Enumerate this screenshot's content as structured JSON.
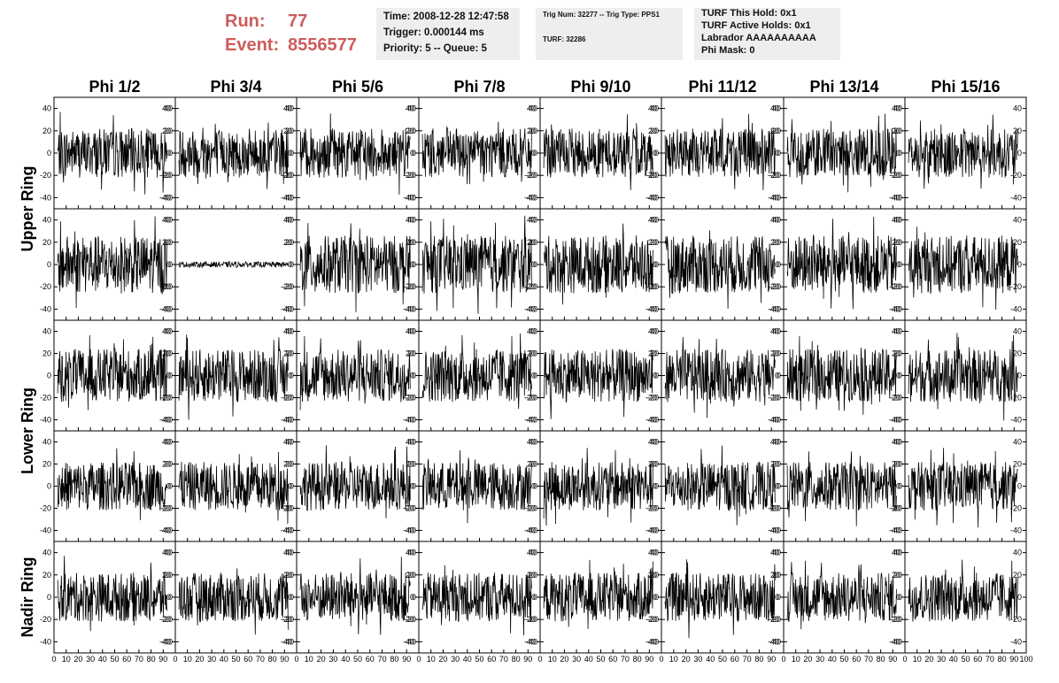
{
  "header": {
    "run_label": "Run:",
    "run_value": "77",
    "event_label": "Event:",
    "event_value": "8556577",
    "time": "Time: 2008-12-28 12:47:58",
    "trigger": "Trigger: 0.000144 ms",
    "priority": "Priority: 5 -- Queue: 5",
    "trig_info": "Trig Num: 32277 -- Trig Type: PPS1",
    "turf": "TURF: 32286",
    "turf_this_hold": "TURF This Hold: 0x1",
    "turf_active_holds": "TURF Active Holds: 0x1",
    "labrador": "Labrador AAAAAAAAAA",
    "phi_mask": "Phi Mask: 0"
  },
  "chart_data": {
    "type": "line",
    "columns": [
      "Phi 1/2",
      "Phi 3/4",
      "Phi 5/6",
      "Phi 7/8",
      "Phi 9/10",
      "Phi 11/12",
      "Phi 13/14",
      "Phi 15/16"
    ],
    "ring_labels": [
      {
        "label": "Upper Ring"
      },
      {
        "label": "Lower Ring"
      },
      {
        "label": "Nadir Ring"
      }
    ],
    "xlim": [
      0,
      100
    ],
    "ylim": [
      -50,
      50
    ],
    "ytick_labels": [
      "40",
      "20",
      "0",
      "-20",
      "-40"
    ],
    "xtick_labels": [
      "0",
      "10",
      "20",
      "30",
      "40",
      "50",
      "60",
      "70",
      "80",
      "90",
      "100"
    ],
    "panel_rows": 5,
    "samples_per_trace": 260,
    "traces": [
      {
        "row": 0,
        "amplitude": 22
      },
      {
        "row": 1,
        "amplitude": 26,
        "quiet_column": 1,
        "quiet_amplitude": 2.5
      },
      {
        "row": 2,
        "amplitude": 24
      },
      {
        "row": 3,
        "amplitude": 22
      },
      {
        "row": 4,
        "amplitude": 22
      }
    ],
    "grid": false,
    "legend": "none"
  }
}
